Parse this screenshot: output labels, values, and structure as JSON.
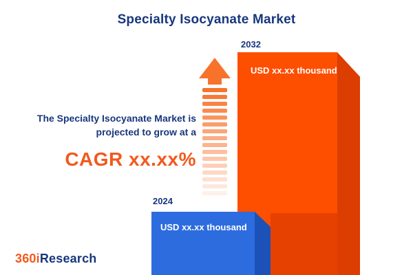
{
  "title": "Specialty Isocyanate Market",
  "tagline": {
    "line1": "The Specialty Isocyanate Market is",
    "line2": "projected to grow at a",
    "cagr": "CAGR xx.xx%"
  },
  "chart_data": {
    "type": "bar",
    "title": "Specialty Isocyanate Market",
    "categories": [
      "2024",
      "2032"
    ],
    "values": [
      "xx.xx",
      "xx.xx"
    ],
    "value_labels": [
      "USD xx.xx thousand",
      "USD xx.xx thousand"
    ],
    "unit": "USD thousand",
    "bar_colors": [
      "#2D6CDF",
      "#FE4E00"
    ],
    "legend": "none",
    "annotation": "The Specialty Isocyanate Market is projected to grow at a CAGR xx.xx%"
  },
  "logo": {
    "part1": "360i",
    "part2": "Research"
  },
  "colors": {
    "navy": "#17367D",
    "accent_orange": "#F2591D",
    "arrow_orange": "#F8722C",
    "bar_2024_blue": "#2D6CDF",
    "bar_2024_side": "#1C52B8",
    "bar_2032_orange": "#FE4E00",
    "bar_2032_side": "#DC3D00"
  }
}
